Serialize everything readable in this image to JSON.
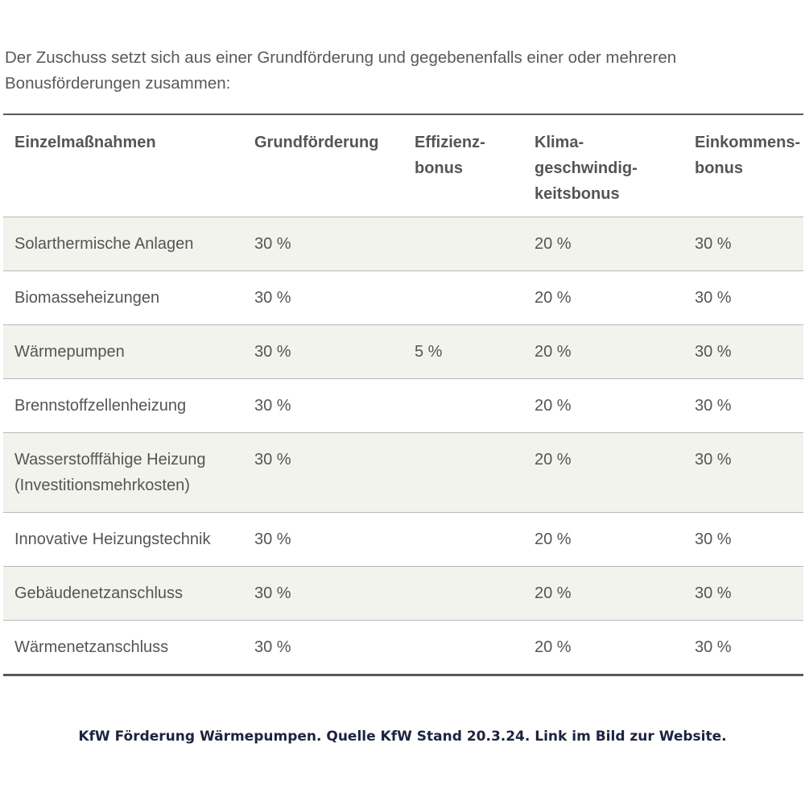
{
  "intro": "Der Zuschuss setzt sich aus einer Grundförderung und gegebenenfalls einer oder mehreren Bonusförderungen zusammen:",
  "table": {
    "headers": [
      "Einzelmaßnahmen",
      "Grundförderung",
      "Effizienz-\nbonus",
      "Klima-\ngeschwindig-\nkeitsbonus",
      "Einkommens-\nbonus"
    ],
    "rows": [
      [
        "Solarthermische Anlagen",
        "30 %",
        "",
        "20 %",
        "30 %"
      ],
      [
        "Biomasseheizungen",
        "30 %",
        "",
        "20 %",
        "30 %"
      ],
      [
        "Wärmepumpen",
        "30 %",
        "5 %",
        "20 %",
        "30 %"
      ],
      [
        "Brennstoffzellenheizung",
        "30 %",
        "",
        "20 %",
        "30 %"
      ],
      [
        "Wasserstofffähige Heizung\n(Investitionsmehrkosten)",
        "30 %",
        "",
        "20 %",
        "30 %"
      ],
      [
        "Innovative Heizungstechnik",
        "30 %",
        "",
        "20 %",
        "30 %"
      ],
      [
        "Gebäudenetzanschluss",
        "30 %",
        "",
        "20 %",
        "30 %"
      ],
      [
        "Wärmenetzanschluss",
        "30 %",
        "",
        "20 %",
        "30 %"
      ]
    ]
  },
  "caption": "KfW Förderung Wärmepumpen. Quelle KfW Stand 20.3.24. Link im Bild zur Website.",
  "colors": {
    "text": "#555555",
    "stripe": "#f2f3ec",
    "caption": "#1d2440"
  }
}
